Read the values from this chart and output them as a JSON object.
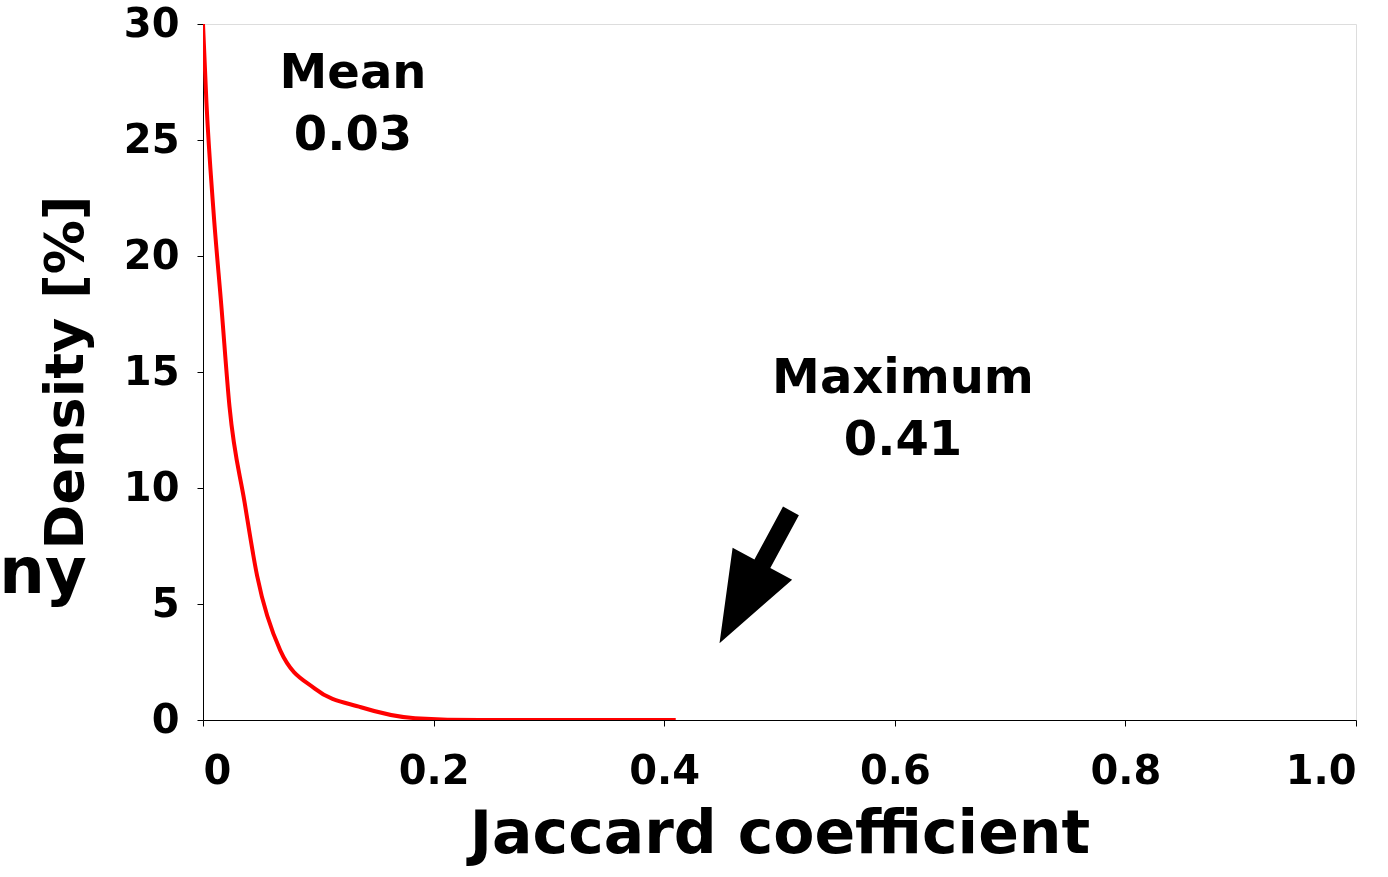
{
  "chart_data": {
    "type": "line",
    "xlabel": "Jaccard coefficient",
    "ylabel": "Density [%]",
    "x": [
      0,
      0.003,
      0.009,
      0.016,
      0.023,
      0.036,
      0.047,
      0.067,
      0.097,
      0.137,
      0.184,
      0.24,
      0.41
    ],
    "series": [
      {
        "color": "#ff0000",
        "values": [
          30,
          26.6,
          22.0,
          17.8,
          13.5,
          9.4,
          6.2,
          3.0,
          1.35,
          0.55,
          0.08,
          0,
          0
        ]
      }
    ],
    "xlim": [
      0,
      1
    ],
    "xticks": [
      {
        "value": 0,
        "label": "0"
      },
      0.2,
      0.4,
      0.6,
      {
        "value": 0.8,
        "label": "0.8"
      },
      {
        "value": 1,
        "label": "1.0"
      }
    ],
    "ylim": [
      0,
      30
    ],
    "yticks": [
      0,
      5,
      10,
      15,
      20,
      25,
      30
    ],
    "grid": false,
    "marker": "none",
    "line_style": "solid",
    "annotations": [
      "Mean\n0.03",
      "Maximum\n0.41",
      "ny"
    ]
  }
}
